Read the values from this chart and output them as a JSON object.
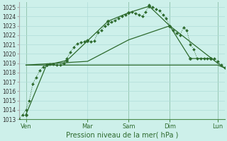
{
  "xlabel": "Pression niveau de la mer( hPa )",
  "background_color": "#cdf0ea",
  "grid_color": "#b0ddd8",
  "line_color": "#2d6a2d",
  "ylim": [
    1013,
    1025.5
  ],
  "yticks": [
    1013,
    1014,
    1015,
    1016,
    1017,
    1018,
    1019,
    1020,
    1021,
    1022,
    1023,
    1024,
    1025
  ],
  "xlim": [
    0,
    240
  ],
  "day_positions": [
    8,
    80,
    128,
    176,
    232
  ],
  "day_labels": [
    "Ven",
    "Mar",
    "Sam",
    "Dim",
    "Lun"
  ],
  "vline_positions": [
    8,
    128,
    176,
    232
  ],
  "series1_dotted": {
    "x": [
      0,
      4,
      8,
      12,
      16,
      20,
      24,
      28,
      32,
      36,
      40,
      44,
      48,
      52,
      56,
      60,
      64,
      68,
      72,
      76,
      80,
      84,
      88,
      92,
      96,
      100,
      104,
      108,
      112,
      116,
      120,
      124,
      128,
      132,
      136,
      140,
      144,
      148,
      152,
      156,
      160,
      164,
      168,
      172,
      176,
      180,
      184,
      188,
      192,
      196,
      200,
      204,
      208,
      212,
      216,
      220,
      224,
      228,
      232,
      236,
      240
    ],
    "y": [
      1013.0,
      1013.5,
      1014.0,
      1015.0,
      1016.8,
      1017.5,
      1018.2,
      1018.6,
      1018.8,
      1018.9,
      1018.9,
      1018.8,
      1018.8,
      1019.0,
      1019.5,
      1020.2,
      1020.7,
      1021.1,
      1021.2,
      1021.3,
      1021.5,
      1021.3,
      1021.4,
      1022.3,
      1022.5,
      1023.0,
      1023.2,
      1023.4,
      1023.6,
      1023.8,
      1024.0,
      1024.2,
      1024.4,
      1024.5,
      1024.3,
      1024.2,
      1024.0,
      1024.5,
      1025.2,
      1025.0,
      1024.8,
      1024.6,
      1024.2,
      1023.8,
      1023.0,
      1022.5,
      1022.2,
      1022.0,
      1022.8,
      1022.5,
      1021.0,
      1020.5,
      1019.5,
      1019.5,
      1019.5,
      1019.5,
      1019.5,
      1019.5,
      1019.2,
      1018.8,
      1018.5
    ]
  },
  "series2_solid_markers": {
    "x": [
      8,
      32,
      56,
      80,
      104,
      128,
      152,
      176,
      200,
      224
    ],
    "y": [
      1013.5,
      1018.8,
      1019.3,
      1021.4,
      1023.5,
      1024.4,
      1025.1,
      1023.0,
      1019.5,
      1019.5
    ]
  },
  "series3_smooth": {
    "x": [
      8,
      80,
      128,
      176,
      232,
      240
    ],
    "y": [
      1018.8,
      1019.2,
      1021.5,
      1023.0,
      1019.0,
      1018.5
    ]
  },
  "series4_flat": {
    "x": [
      8,
      128,
      232,
      240
    ],
    "y": [
      1018.8,
      1018.8,
      1018.8,
      1018.5
    ]
  }
}
